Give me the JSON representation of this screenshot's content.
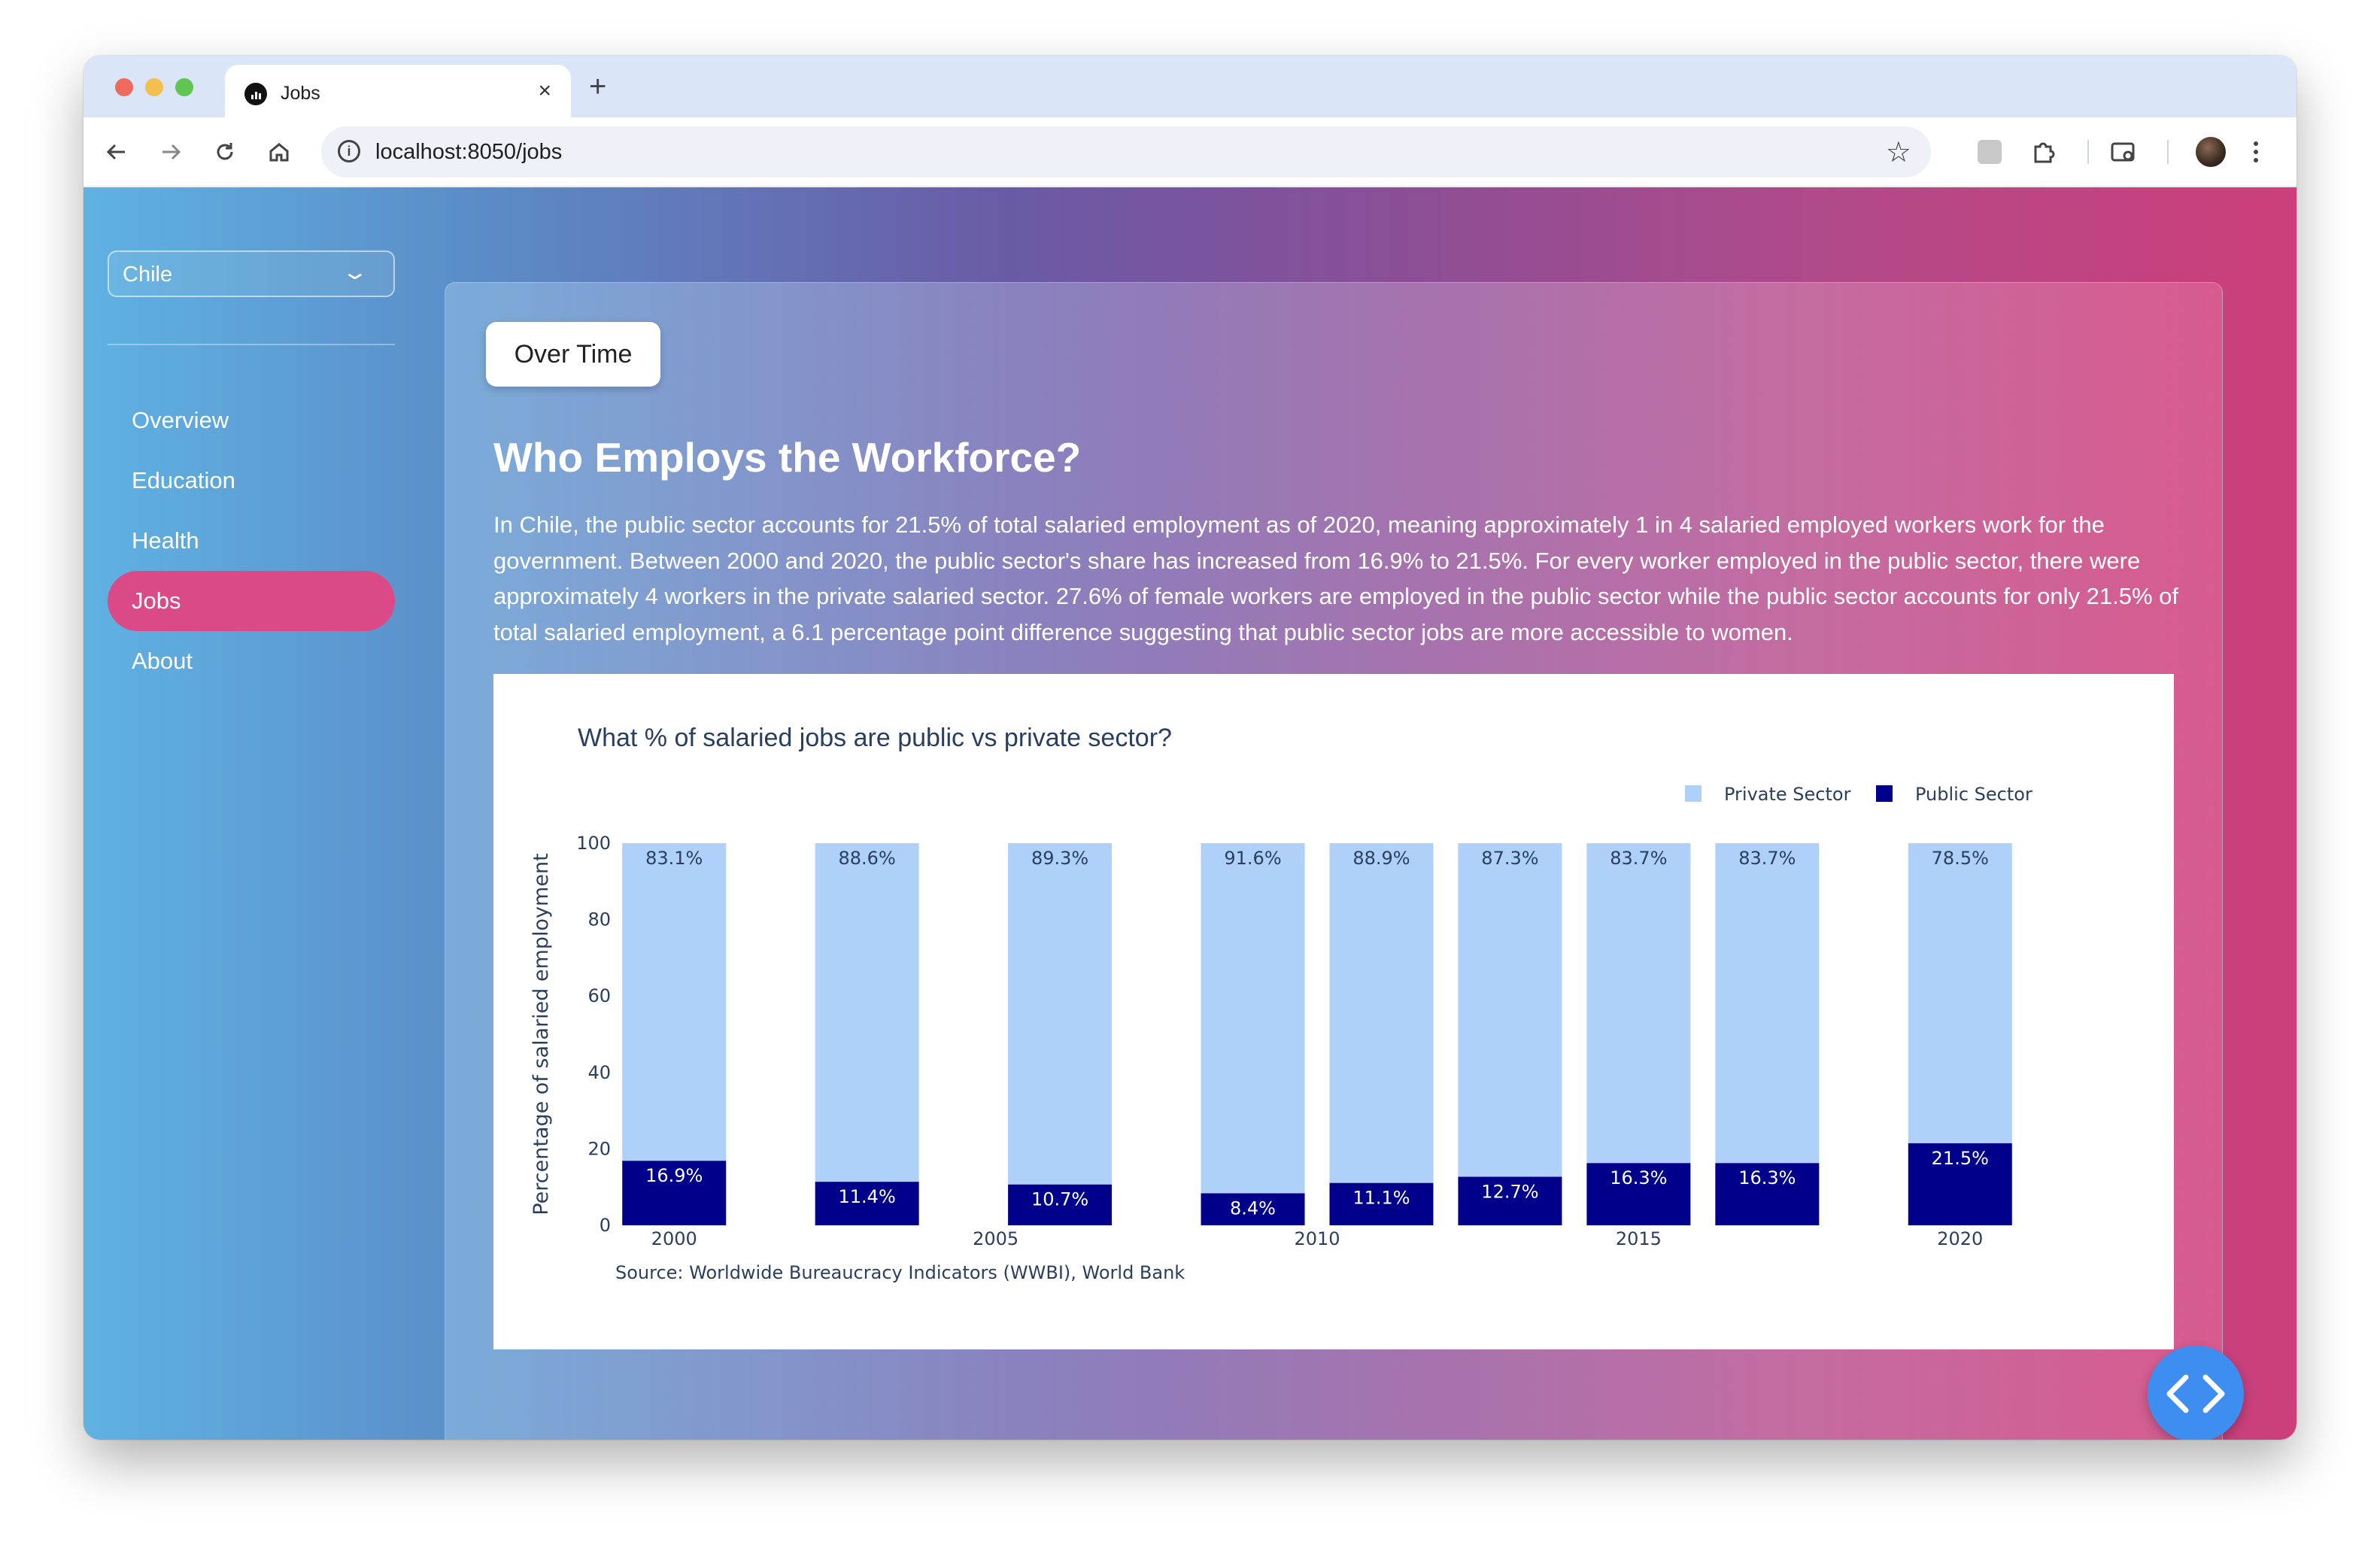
{
  "browser": {
    "tab_title": "Jobs",
    "tab_close": "×",
    "new_tab": "+",
    "url": "localhost:8050/jobs"
  },
  "sidebar": {
    "country": "Chile",
    "items": [
      {
        "label": "Overview"
      },
      {
        "label": "Education"
      },
      {
        "label": "Health"
      },
      {
        "label": "Jobs"
      },
      {
        "label": "About"
      }
    ],
    "active": "Jobs"
  },
  "content": {
    "tab_label": "Over Time",
    "title": "Who Employs the Workforce?",
    "description": "In Chile, the public sector accounts for 21.5% of total salaried employment as of 2020, meaning approximately 1 in 4 salaried employed workers work for the government. Between 2000 and 2020, the public sector's share has increased from 16.9% to 21.5%. For every worker employed in the public sector, there were approximately 4 workers in the private salaried sector. 27.6% of female workers are employed in the public sector while the public sector accounts for only 21.5% of total salaried employment, a 6.1 percentage point difference suggesting that public sector jobs are more accessible to women."
  },
  "colors": {
    "private": "#aed0f9",
    "public": "#00008b",
    "active_nav": "#db4a86",
    "fab": "#3d8ef0"
  },
  "chart_data": {
    "type": "bar",
    "stacked": true,
    "title": "What % of salaried jobs are public vs private sector?",
    "ylabel": "Percentage of salaried employment",
    "ylim": [
      0,
      100
    ],
    "yticks": [
      0,
      20,
      40,
      60,
      80,
      100
    ],
    "xticks": [
      2000,
      2005,
      2010,
      2015,
      2020
    ],
    "xlim": [
      1998.5,
      2021.5
    ],
    "years": [
      2000,
      2003,
      2006,
      2009,
      2011,
      2013,
      2015,
      2017,
      2020
    ],
    "series": [
      {
        "name": "Public Sector",
        "color": "#00008b",
        "values": [
          16.9,
          11.4,
          10.7,
          8.4,
          11.1,
          12.7,
          16.3,
          16.3,
          21.5
        ],
        "labels": [
          "16.9%",
          "11.4%",
          "10.7%",
          "8.4%",
          "11.1%",
          "12.7%",
          "16.3%",
          "16.3%",
          "21.5%"
        ]
      },
      {
        "name": "Private Sector",
        "color": "#aed0f9",
        "values": [
          83.1,
          88.6,
          89.3,
          91.6,
          88.9,
          87.3,
          83.7,
          83.7,
          78.5
        ],
        "labels": [
          "83.1%",
          "88.6%",
          "89.3%",
          "91.6%",
          "88.9%",
          "87.3%",
          "83.7%",
          "83.7%",
          "78.5%"
        ]
      }
    ],
    "legend": [
      {
        "name": "Private Sector",
        "color": "#aed0f9"
      },
      {
        "name": "Public Sector",
        "color": "#00008b"
      }
    ],
    "legend_position": "top-right",
    "source": "Source: Worldwide Bureaucracy Indicators (WWBI), World Bank"
  }
}
